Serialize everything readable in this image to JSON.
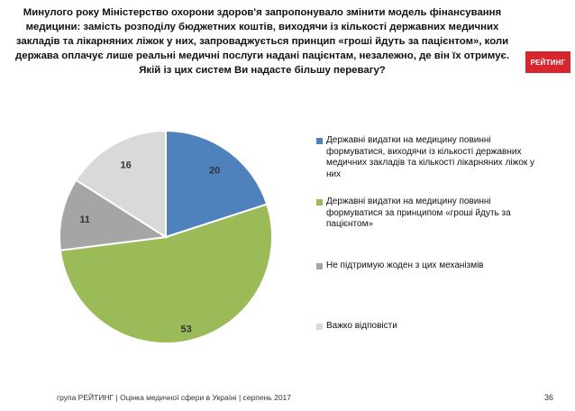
{
  "title": "Минулого року Міністерство охорони здоров'я запропонувало змінити модель фінансування медицини: замість розподілу бюджетних коштів, виходячи із кількості державних медичних закладів та лікарняних ліжок у них, запроваджується принцип «гроші йдуть за пацієнтом», коли держава оплачує лише реальні медичні послуги надані пацієнтам, незалежно, де він їх отримує. Якій із цих систем Ви надасте більшу перевагу?",
  "logo_text": "РЕЙТИНГ",
  "footer": "група РЕЙТИНГ  |  Оцінка медичної сфери в Україні  |  серпень 2017",
  "page_number": "36",
  "chart_data": {
    "type": "pie",
    "start_angle_deg": 0,
    "direction": "clockwise",
    "slices": [
      {
        "label": "Державні видатки на медицину повинні формуватися, виходячи із кількості державних медичних закладів та кількості лікарняних ліжок у них",
        "value": 20,
        "color": "#4f81bd"
      },
      {
        "label": "Державні видатки на медицину повинні формуватися за принципом «гроші йдуть за пацієнтом»",
        "value": 53,
        "color": "#9bbb59"
      },
      {
        "label": "Не підтримую жоден з цих механізмів",
        "value": 11,
        "color": "#a5a5a5"
      },
      {
        "label": "Важко відповісти",
        "value": 16,
        "color": "#d9d9d9"
      }
    ]
  }
}
